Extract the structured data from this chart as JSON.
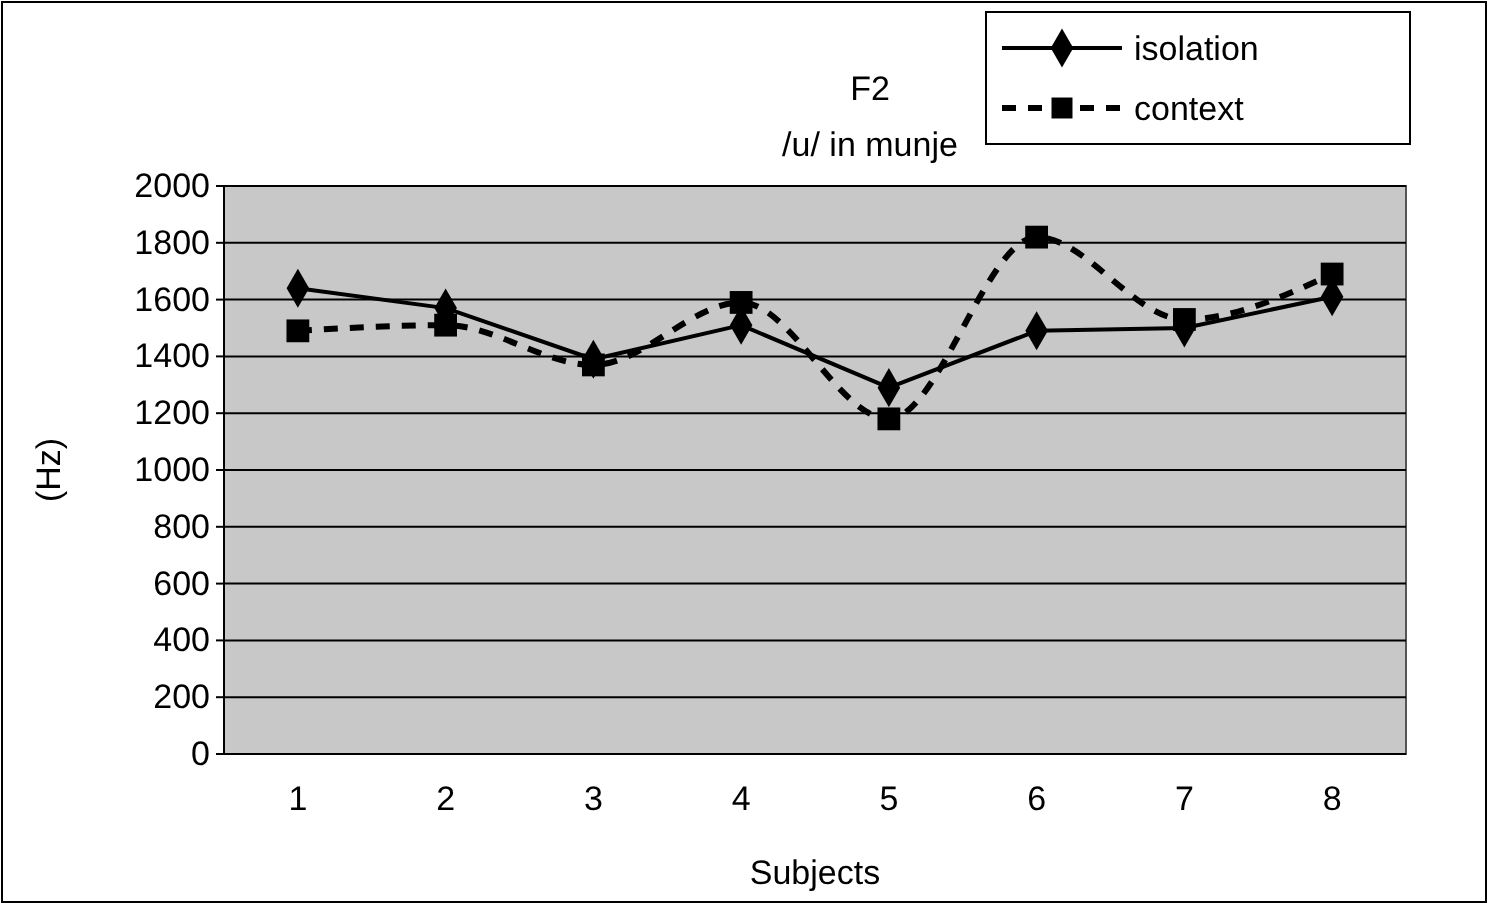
{
  "chart_data": {
    "type": "line",
    "title": "F2",
    "subtitle": "/u/ in munje",
    "xlabel": "Subjects",
    "ylabel": "(Hz)",
    "categories": [
      "1",
      "2",
      "3",
      "4",
      "5",
      "6",
      "7",
      "8"
    ],
    "series": [
      {
        "name": "isolation",
        "color": "#000000",
        "values": [
          1640,
          1570,
          1390,
          1510,
          1290,
          1490,
          1500,
          1610
        ],
        "marker": "diamond",
        "line_style": "solid"
      },
      {
        "name": "context",
        "color": "#000000",
        "values": [
          1490,
          1510,
          1370,
          1590,
          1180,
          1820,
          1530,
          1690
        ],
        "marker": "square",
        "line_style": "dashed"
      }
    ],
    "ylim": [
      0,
      2000
    ],
    "yticks": [
      0,
      200,
      400,
      600,
      800,
      1000,
      1200,
      1400,
      1600,
      1800,
      2000
    ],
    "grid": "y",
    "legend": "top right"
  }
}
